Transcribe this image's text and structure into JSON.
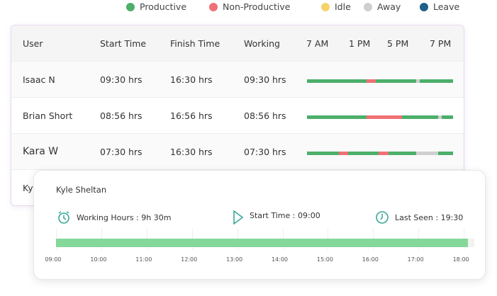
{
  "legend": [
    {
      "label": "Productive",
      "color": "#4caf6a"
    },
    {
      "label": "Non-Productive",
      "color": "#f07076"
    },
    {
      "label": "Idle",
      "color": "#f5d36b"
    },
    {
      "label": "Away",
      "color": "#cfcfcf"
    },
    {
      "label": "Leave",
      "color": "#1f5f8b"
    }
  ],
  "table": {
    "headers": [
      "User",
      "Start Time",
      "Finish Time",
      "Working"
    ],
    "hour_labels": [
      "7 AM",
      "1 PM",
      "5 PM",
      "7 PM"
    ],
    "rows": [
      {
        "user": "Isaac N",
        "start": "09:30 hrs",
        "finish": "16:30 hrs",
        "working": "09:30 hrs",
        "timeline": [
          [
            "Productive",
            0.41
          ],
          [
            "Non-Productive",
            0.06
          ],
          [
            "Productive",
            0.28
          ],
          [
            "Away",
            0.02
          ],
          [
            "Productive",
            0.23
          ]
        ]
      },
      {
        "user": "Brian Short",
        "start": "08:56 hrs",
        "finish": "16:56 hrs",
        "working": "08:56 hrs",
        "timeline": [
          [
            "Productive",
            0.41
          ],
          [
            "Non-Productive",
            0.24
          ],
          [
            "Productive",
            0.25
          ],
          [
            "Away",
            0.02
          ],
          [
            "Productive",
            0.08
          ]
        ]
      },
      {
        "user": "Kara W",
        "start": "07:30 hrs",
        "finish": "16:30 hrs",
        "working": "07:30 hrs",
        "timeline": [
          [
            "Productive",
            0.22
          ],
          [
            "Non-Productive",
            0.06
          ],
          [
            "Productive",
            0.21
          ],
          [
            "Non-Productive",
            0.07
          ],
          [
            "Productive",
            0.19
          ],
          [
            "Away",
            0.15
          ],
          [
            "Productive",
            0.1
          ]
        ]
      },
      {
        "user": "Ky",
        "start": "",
        "finish": "",
        "working": "",
        "timeline": []
      }
    ]
  },
  "detail": {
    "name": "Kyle Sheltan",
    "working_hours": "Working Hours : 9h 30m",
    "start_time": "Start Time : 09:00",
    "last_seen": "Last Seen : 19:30",
    "ticks": [
      "09:00",
      "10:00",
      "11:00",
      "12:00",
      "13:00",
      "14:00",
      "15:00",
      "16:00",
      "17:00",
      "18:00"
    ],
    "progress_fraction": 0.985,
    "accent": "#3aa89a"
  }
}
